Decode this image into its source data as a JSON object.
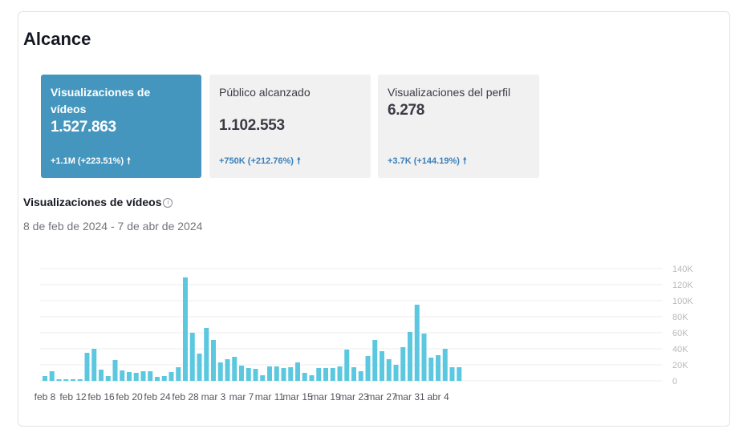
{
  "title": "Alcance",
  "metrics": [
    {
      "label": "Visualizaciones de vídeos",
      "value": "1.527.863",
      "change": "+1.1M (+223.51%)"
    },
    {
      "label": "Público alcanzado",
      "value": "1.102.553",
      "change": "+750K (+212.76%)"
    },
    {
      "label": "Visualizaciones del perfil",
      "value": "6.278",
      "change": "+3.7K (+144.19%)"
    }
  ],
  "chart_title": "Visualizaciones de vídeos",
  "date_range": "8 de feb de 2024 - 7 de abr de 2024",
  "colors": {
    "accent": "#4596be",
    "bar": "#5bc8e0",
    "change_text": "#3a7fb8"
  },
  "chart_data": {
    "type": "bar",
    "x_tick_labels": [
      "feb 8",
      "feb 12",
      "feb 16",
      "feb 20",
      "feb 24",
      "feb 28",
      "mar 3",
      "mar 7",
      "mar 11",
      "mar 15",
      "mar 19",
      "mar 23",
      "mar 27",
      "mar 31",
      "abr 4"
    ],
    "y_tick_labels": [
      "140K",
      "120K",
      "100K",
      "80K",
      "60K",
      "40K",
      "20K",
      "0"
    ],
    "ylim": [
      0,
      140000
    ],
    "grid": true,
    "categories": [
      "feb 8",
      "feb 9",
      "feb 10",
      "feb 11",
      "feb 12",
      "feb 13",
      "feb 14",
      "feb 15",
      "feb 16",
      "feb 17",
      "feb 18",
      "feb 19",
      "feb 20",
      "feb 21",
      "feb 22",
      "feb 23",
      "feb 24",
      "feb 25",
      "feb 26",
      "feb 27",
      "feb 28",
      "feb 29",
      "mar 1",
      "mar 2",
      "mar 3",
      "mar 4",
      "mar 5",
      "mar 6",
      "mar 7",
      "mar 8",
      "mar 9",
      "mar 10",
      "mar 11",
      "mar 12",
      "mar 13",
      "mar 14",
      "mar 15",
      "mar 16",
      "mar 17",
      "mar 18",
      "mar 19",
      "mar 20",
      "mar 21",
      "mar 22",
      "mar 23",
      "mar 24",
      "mar 25",
      "mar 26",
      "mar 27",
      "mar 28",
      "mar 29",
      "mar 30",
      "mar 31",
      "abr 1",
      "abr 2",
      "abr 3",
      "abr 4",
      "abr 5",
      "abr 6",
      "abr 7"
    ],
    "values": [
      6000,
      12000,
      2000,
      2000,
      2000,
      2000,
      35000,
      40000,
      14000,
      6000,
      26000,
      13000,
      11000,
      10000,
      12000,
      12000,
      5000,
      6000,
      11000,
      17000,
      129000,
      60000,
      34000,
      66000,
      51000,
      23000,
      27000,
      30000,
      19000,
      16000,
      15000,
      7000,
      18000,
      18000,
      16000,
      17000,
      23000,
      10000,
      7000,
      16000,
      16000,
      16000,
      18000,
      39000,
      17000,
      12000,
      31000,
      51000,
      37000,
      27000,
      20000,
      42000,
      61000,
      95000,
      59000,
      29000,
      32000,
      40000,
      17000,
      17000
    ]
  }
}
